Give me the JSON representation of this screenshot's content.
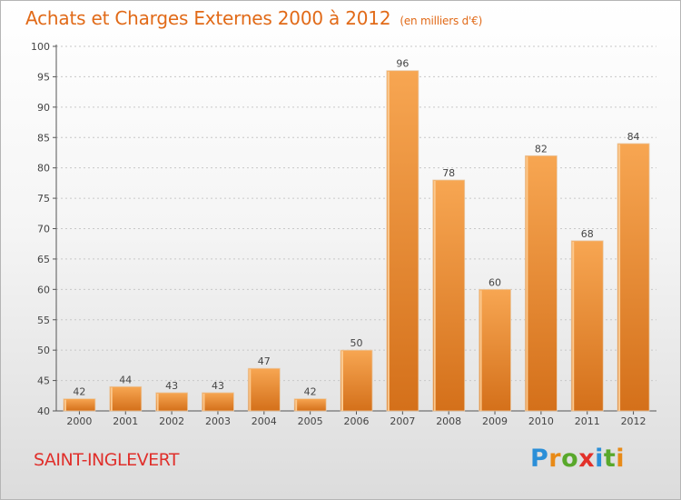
{
  "header": {
    "title": "Achats et Charges Externes 2000 à 2012",
    "unit": "(en milliers d'€)"
  },
  "footer": {
    "commune": "SAINT-INGLEVERT",
    "brand": [
      "P",
      "r",
      "o",
      "x",
      "i",
      "t",
      "i"
    ],
    "brand_colors": [
      "#2b8fd8",
      "#e88a17",
      "#59a82b",
      "#e2312a",
      "#2b8fd8",
      "#59a82b",
      "#e88a17"
    ]
  },
  "colors": {
    "bar_light": "#f7a652",
    "bar_dark": "#d4701a",
    "text": "#444444",
    "grid": "#c8c8c8",
    "accent": "#e16a18"
  },
  "chart_data": {
    "type": "bar",
    "title": "Achats et Charges Externes 2000 à 2012",
    "categories": [
      "2000",
      "2001",
      "2002",
      "2003",
      "2004",
      "2005",
      "2006",
      "2007",
      "2008",
      "2009",
      "2010",
      "2011",
      "2012"
    ],
    "values": [
      42,
      44,
      43,
      43,
      47,
      42,
      50,
      96,
      78,
      60,
      82,
      68,
      84
    ],
    "ylim": [
      40,
      100
    ],
    "yticks": [
      40,
      45,
      50,
      55,
      60,
      65,
      70,
      75,
      80,
      85,
      90,
      95,
      100
    ],
    "grid": true,
    "data_labels": true
  }
}
